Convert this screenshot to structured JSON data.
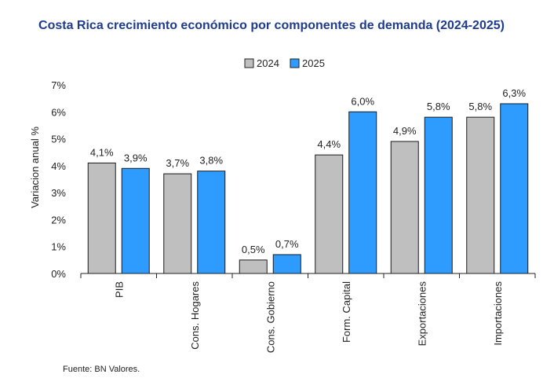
{
  "chart_data": {
    "type": "bar",
    "title": "Costa Rica crecimiento económico por componentes de demanda (2024-2025)",
    "ylabel": "Variacion anual %",
    "xlabel": "",
    "ylim": [
      0,
      7
    ],
    "yticks": [
      "0%",
      "1%",
      "2%",
      "3%",
      "4%",
      "5%",
      "6%",
      "7%"
    ],
    "categories": [
      "PIB",
      "Cons. Hogares",
      "Cons. Gobierno",
      "Form. Capital",
      "Exportaciones",
      "Importaciones"
    ],
    "series": [
      {
        "name": "2024",
        "color": "#bfbfbf",
        "values": [
          4.1,
          3.7,
          0.5,
          4.4,
          4.9,
          5.8
        ],
        "labels": [
          "4,1%",
          "3,7%",
          "0,5%",
          "4,4%",
          "4,9%",
          "5,8%"
        ]
      },
      {
        "name": "2025",
        "color": "#2e9bff",
        "values": [
          3.9,
          3.8,
          0.7,
          6.0,
          5.8,
          6.3
        ],
        "labels": [
          "3,9%",
          "3,8%",
          "0,7%",
          "6,0%",
          "5,8%",
          "6,3%"
        ]
      }
    ],
    "legend_position": "top-center",
    "grid": false,
    "source": "Fuente: BN Valores."
  }
}
